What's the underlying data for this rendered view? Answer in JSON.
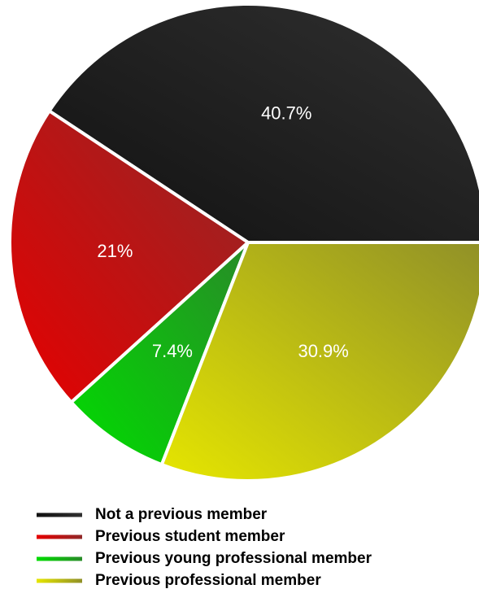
{
  "chart_data": {
    "type": "pie",
    "categories": [
      "Not a previous member",
      "Previous student member",
      "Previous young professional member",
      "Previous professional member"
    ],
    "values": [
      40.7,
      21,
      7.4,
      30.9
    ],
    "value_labels": [
      "40.7%",
      "21%",
      "7.4%",
      "30.9%"
    ],
    "colors": [
      "#111111",
      "#e60000",
      "#00dd00",
      "#e6e600"
    ],
    "legend": "bottom"
  }
}
